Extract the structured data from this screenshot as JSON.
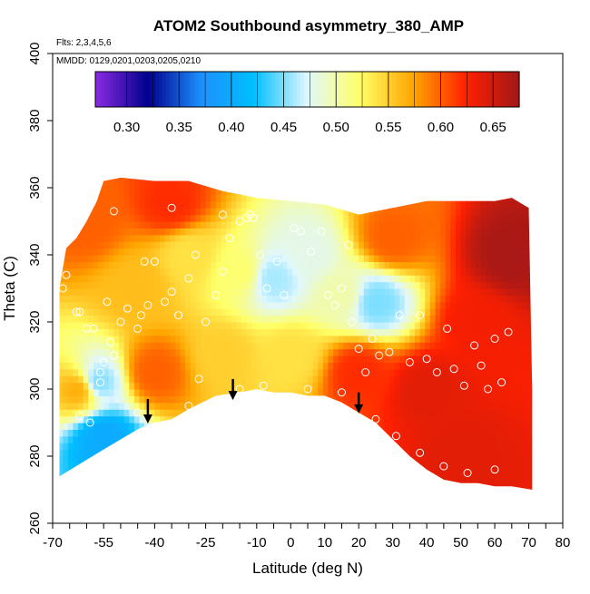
{
  "chart_data": {
    "type": "heatmap",
    "title": "ATOM2 Southbound asymmetry_380_AMP",
    "flights_note": "Flts: 2,3,4,5,6",
    "dates_note": "MMDD: 0129,0201,0203,0205,0210",
    "xlabel": "Latitude (deg N)",
    "ylabel": "Theta (C)",
    "xlim": [
      -70,
      80
    ],
    "ylim": [
      260,
      400
    ],
    "x_ticks": [
      -70,
      -55,
      -40,
      -25,
      -10,
      0,
      10,
      20,
      30,
      40,
      50,
      60,
      70,
      80
    ],
    "x_tick_labels": [
      "-70",
      "-55",
      "-40",
      "-25",
      "-10",
      "0",
      "10",
      "20",
      "30",
      "40",
      "50",
      "60",
      "70",
      "80"
    ],
    "y_ticks": [
      260,
      280,
      300,
      320,
      340,
      360,
      380,
      400
    ],
    "y_tick_labels": [
      "260",
      "280",
      "300",
      "320",
      "340",
      "360",
      "380",
      "400"
    ],
    "colorbar": {
      "min": 0.27,
      "max": 0.675,
      "ticks": [
        0.3,
        0.35,
        0.4,
        0.45,
        0.5,
        0.55,
        0.6,
        0.65
      ],
      "tick_labels": [
        "0.30",
        "0.35",
        "0.40",
        "0.45",
        "0.50",
        "0.55",
        "0.60",
        "0.65"
      ],
      "colors": [
        "#8a2be2",
        "#00008b",
        "#1e90ff",
        "#00bfff",
        "#e0f7ff",
        "#ffff66",
        "#ffa500",
        "#ff2000",
        "#a01818"
      ]
    },
    "top_boundary": [
      [
        -68,
        330
      ],
      [
        -67,
        336
      ],
      [
        -66,
        342
      ],
      [
        -63,
        345
      ],
      [
        -60,
        350
      ],
      [
        -57,
        356
      ],
      [
        -55,
        362
      ],
      [
        -50,
        363
      ],
      [
        -40,
        362
      ],
      [
        -30,
        362
      ],
      [
        -20,
        359
      ],
      [
        -10,
        357
      ],
      [
        0,
        356
      ],
      [
        10,
        355
      ],
      [
        20,
        352
      ],
      [
        30,
        354
      ],
      [
        40,
        356
      ],
      [
        50,
        356
      ],
      [
        60,
        356
      ],
      [
        65,
        357
      ],
      [
        70,
        354
      ],
      [
        71,
        300
      ],
      [
        71,
        270
      ]
    ],
    "tropopause_floor": [
      [
        -68,
        274
      ],
      [
        -55,
        282
      ],
      [
        -45,
        288
      ],
      [
        -40,
        290
      ],
      [
        -35,
        291
      ],
      [
        -30,
        294
      ],
      [
        -22,
        298
      ],
      [
        -15,
        299
      ],
      [
        -10,
        300
      ],
      [
        -5,
        299
      ],
      [
        0,
        299
      ],
      [
        5,
        298
      ],
      [
        10,
        298
      ],
      [
        15,
        296
      ],
      [
        20,
        293
      ],
      [
        25,
        290
      ],
      [
        30,
        285
      ],
      [
        35,
        280
      ],
      [
        40,
        276
      ],
      [
        45,
        273
      ],
      [
        50,
        272
      ],
      [
        55,
        272
      ],
      [
        60,
        271
      ],
      [
        65,
        271
      ],
      [
        71,
        270
      ]
    ],
    "value_anchors": [
      {
        "lat": -60,
        "theta": 350,
        "value": 0.6
      },
      {
        "lat": -45,
        "theta": 330,
        "value": 0.56
      },
      {
        "lat": -30,
        "theta": 340,
        "value": 0.54
      },
      {
        "lat": -15,
        "theta": 335,
        "value": 0.52
      },
      {
        "lat": -5,
        "theta": 333,
        "value": 0.46
      },
      {
        "lat": 5,
        "theta": 340,
        "value": 0.48
      },
      {
        "lat": 15,
        "theta": 328,
        "value": 0.5
      },
      {
        "lat": 25,
        "theta": 326,
        "value": 0.45
      },
      {
        "lat": -40,
        "theta": 305,
        "value": 0.6
      },
      {
        "lat": -20,
        "theta": 310,
        "value": 0.55
      },
      {
        "lat": 0,
        "theta": 310,
        "value": 0.54
      },
      {
        "lat": 20,
        "theta": 305,
        "value": 0.62
      },
      {
        "lat": 40,
        "theta": 300,
        "value": 0.64
      },
      {
        "lat": 55,
        "theta": 320,
        "value": 0.63
      },
      {
        "lat": 65,
        "theta": 340,
        "value": 0.67
      },
      {
        "lat": 50,
        "theta": 280,
        "value": 0.64
      },
      {
        "lat": -62,
        "theta": 300,
        "value": 0.57
      },
      {
        "lat": -55,
        "theta": 286,
        "value": 0.4
      },
      {
        "lat": -57,
        "theta": 302,
        "value": 0.45
      },
      {
        "lat": -35,
        "theta": 355,
        "value": 0.62
      },
      {
        "lat": 30,
        "theta": 345,
        "value": 0.6
      }
    ],
    "observations": [
      [
        -67,
        330
      ],
      [
        -66,
        334
      ],
      [
        -63,
        323
      ],
      [
        -62,
        323
      ],
      [
        -60,
        318
      ],
      [
        -58,
        318
      ],
      [
        -56,
        305
      ],
      [
        -56,
        302
      ],
      [
        -55,
        308
      ],
      [
        -54,
        326
      ],
      [
        -53,
        314
      ],
      [
        -52,
        310
      ],
      [
        -50,
        320
      ],
      [
        -48,
        324
      ],
      [
        -45,
        318
      ],
      [
        -44,
        322
      ],
      [
        -42,
        325
      ],
      [
        -40,
        338
      ],
      [
        -37,
        326
      ],
      [
        -35,
        329
      ],
      [
        -33,
        322
      ],
      [
        -30,
        333
      ],
      [
        -28,
        340
      ],
      [
        -25,
        320
      ],
      [
        -22,
        328
      ],
      [
        -20,
        335
      ],
      [
        -18,
        345
      ],
      [
        -15,
        350
      ],
      [
        -13,
        351
      ],
      [
        -11,
        351
      ],
      [
        -9,
        340
      ],
      [
        -7,
        330
      ],
      [
        -4,
        338
      ],
      [
        -2,
        328
      ],
      [
        1,
        348
      ],
      [
        3,
        347
      ],
      [
        6,
        341
      ],
      [
        9,
        347
      ],
      [
        11,
        328
      ],
      [
        13,
        325
      ],
      [
        15,
        330
      ],
      [
        17,
        343
      ],
      [
        18,
        320
      ],
      [
        20,
        312
      ],
      [
        22,
        305
      ],
      [
        24,
        315
      ],
      [
        26,
        310
      ],
      [
        29,
        311
      ],
      [
        32,
        322
      ],
      [
        35,
        308
      ],
      [
        38,
        322
      ],
      [
        40,
        309
      ],
      [
        43,
        305
      ],
      [
        46,
        318
      ],
      [
        48,
        306
      ],
      [
        51,
        301
      ],
      [
        54,
        313
      ],
      [
        56,
        307
      ],
      [
        58,
        300
      ],
      [
        60,
        315
      ],
      [
        62,
        302
      ],
      [
        64,
        317
      ],
      [
        -62,
        292
      ],
      [
        -59,
        290
      ],
      [
        -45,
        293
      ],
      [
        -30,
        295
      ],
      [
        -15,
        300
      ],
      [
        5,
        300
      ],
      [
        15,
        299
      ],
      [
        25,
        291
      ],
      [
        31,
        286
      ],
      [
        38,
        281
      ],
      [
        45,
        277
      ],
      [
        52,
        275
      ],
      [
        60,
        276
      ],
      [
        -52,
        353
      ],
      [
        -35,
        354
      ],
      [
        -20,
        352
      ],
      [
        -12,
        352
      ],
      [
        -8,
        301
      ],
      [
        -43,
        338
      ],
      [
        -27,
        303
      ]
    ],
    "arrows": [
      {
        "lat": -42,
        "theta_top": 297,
        "theta_tip": 290
      },
      {
        "lat": -17,
        "theta_top": 303,
        "theta_tip": 297
      },
      {
        "lat": 20,
        "theta_top": 299,
        "theta_tip": 293
      }
    ]
  }
}
